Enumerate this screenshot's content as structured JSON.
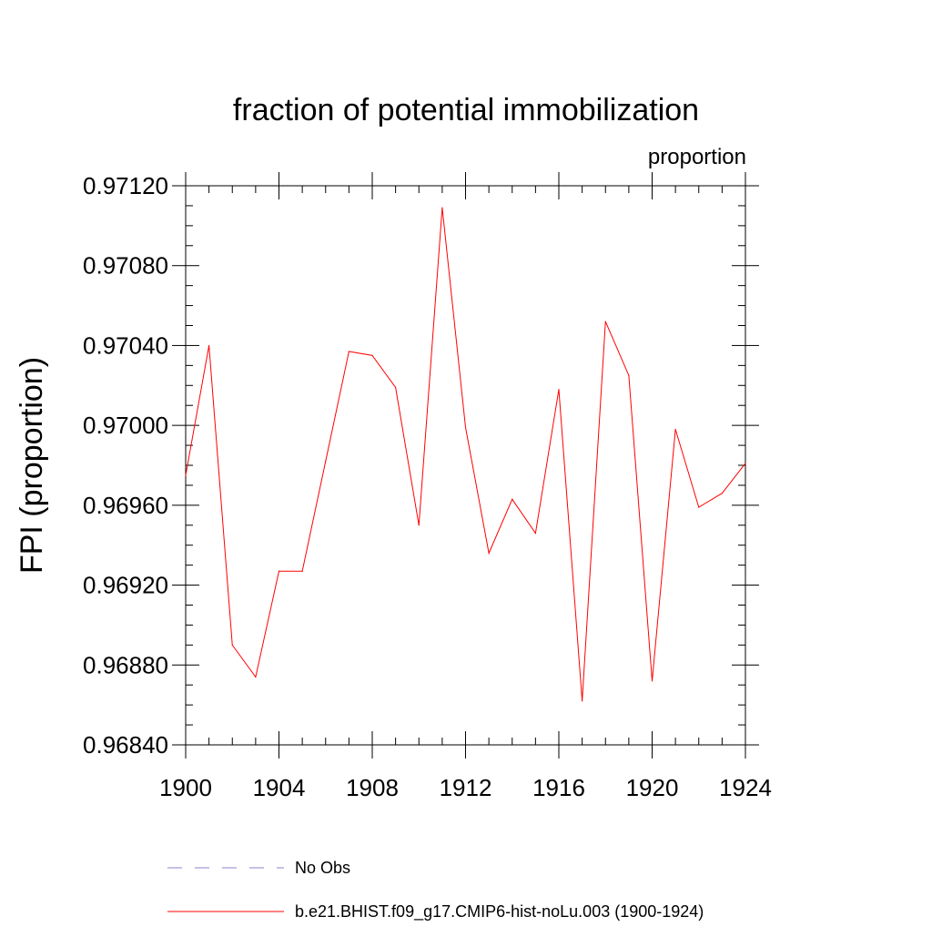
{
  "chart_data": {
    "type": "line",
    "title": "fraction of potential immobilization",
    "units_label": "proportion",
    "ylabel": "FPI  (proportion)",
    "xlabel": "",
    "xlim": [
      1900,
      1924
    ],
    "ylim": [
      0.9684,
      0.9712
    ],
    "x_ticks": [
      1900,
      1904,
      1908,
      1912,
      1916,
      1920,
      1924
    ],
    "y_ticks": [
      "0.96840",
      "0.96880",
      "0.96920",
      "0.96960",
      "0.97000",
      "0.97040",
      "0.97080",
      "0.97120"
    ],
    "y_tick_values": [
      0.9684,
      0.9688,
      0.9692,
      0.9696,
      0.97,
      0.9704,
      0.9708,
      0.9712
    ],
    "grid": false,
    "legend_position": "bottom",
    "series": [
      {
        "name": "b.e21.BHIST.f09_g17.CMIP6-hist-noLu.003 (1900-1924)",
        "color": "#ff0000",
        "style": "solid",
        "x": [
          1900,
          1901,
          1902,
          1903,
          1904,
          1905,
          1906,
          1907,
          1908,
          1909,
          1910,
          1911,
          1912,
          1913,
          1914,
          1915,
          1916,
          1917,
          1918,
          1919,
          1920,
          1921,
          1922,
          1923,
          1924
        ],
        "values": [
          0.96975,
          0.9704,
          0.9689,
          0.96874,
          0.96927,
          0.96927,
          0.96982,
          0.97037,
          0.97035,
          0.97019,
          0.9695,
          0.97109,
          0.96999,
          0.96936,
          0.96963,
          0.96946,
          0.97018,
          0.96862,
          0.97052,
          0.97025,
          0.96872,
          0.96998,
          0.96959,
          0.96966,
          0.96981
        ]
      }
    ],
    "legend": [
      {
        "label": "No Obs",
        "color": "#8a82c8",
        "style": "dashed"
      },
      {
        "label": "b.e21.BHIST.f09_g17.CMIP6-hist-noLu.003 (1900-1924)",
        "color": "#ff0000",
        "style": "solid"
      }
    ]
  }
}
